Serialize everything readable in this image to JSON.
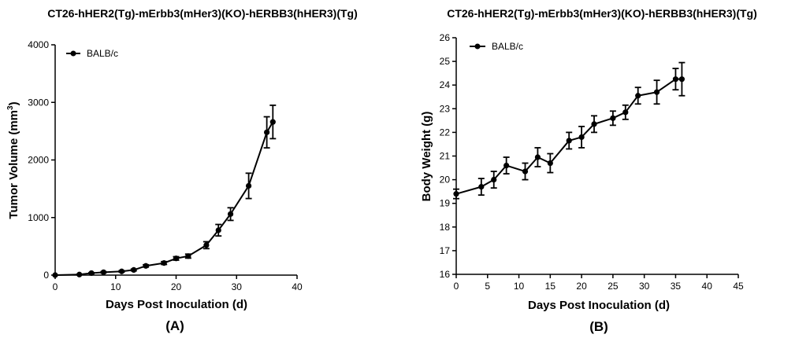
{
  "chart_data": [
    {
      "type": "line",
      "panel_label": "(A)",
      "title": "CT26-hHER2(Tg)-mErbb3(mHer3)(KO)-hERBB3(hHER3)(Tg)",
      "xlabel": "Days Post Inoculation (d)",
      "ylabel_main": "Tumor Volume (mm",
      "ylabel_sup": "3",
      "ylabel_end": ")",
      "xlim": [
        0,
        40
      ],
      "ylim": [
        0,
        4000
      ],
      "xticks": [
        0,
        10,
        20,
        30,
        40
      ],
      "yticks": [
        0,
        1000,
        2000,
        3000,
        4000
      ],
      "legend": "top-left",
      "series": [
        {
          "name": "BALB/c",
          "x": [
            0,
            4,
            6,
            8,
            11,
            13,
            15,
            18,
            20,
            22,
            25,
            27,
            29,
            32,
            35,
            36
          ],
          "y": [
            0,
            10,
            35,
            50,
            65,
            90,
            160,
            210,
            290,
            330,
            520,
            780,
            1060,
            1550,
            2480,
            2660
          ],
          "err": [
            0,
            5,
            8,
            10,
            12,
            15,
            20,
            25,
            30,
            35,
            60,
            100,
            110,
            220,
            270,
            290
          ]
        }
      ]
    },
    {
      "type": "line",
      "panel_label": "(B)",
      "title": "CT26-hHER2(Tg)-mErbb3(mHer3)(KO)-hERBB3(hHER3)(Tg)",
      "xlabel": "Days Post Inoculation (d)",
      "ylabel": "Body Weight (g)",
      "xlim": [
        0,
        45
      ],
      "ylim": [
        16,
        26
      ],
      "xticks": [
        0,
        5,
        10,
        15,
        20,
        25,
        30,
        35,
        40,
        45
      ],
      "yticks": [
        16,
        17,
        18,
        19,
        20,
        21,
        22,
        23,
        24,
        25,
        26
      ],
      "legend": "top-left",
      "series": [
        {
          "name": "BALB/c",
          "x": [
            0,
            4,
            6,
            8,
            11,
            13,
            15,
            18,
            20,
            22,
            25,
            27,
            29,
            32,
            35,
            36
          ],
          "y": [
            19.4,
            19.7,
            20.0,
            20.6,
            20.35,
            20.95,
            20.7,
            21.65,
            21.8,
            22.35,
            22.6,
            22.85,
            23.55,
            23.7,
            24.25,
            24.25
          ],
          "err": [
            0.2,
            0.35,
            0.35,
            0.35,
            0.35,
            0.4,
            0.4,
            0.35,
            0.45,
            0.35,
            0.3,
            0.3,
            0.35,
            0.5,
            0.45,
            0.7
          ]
        }
      ]
    }
  ]
}
